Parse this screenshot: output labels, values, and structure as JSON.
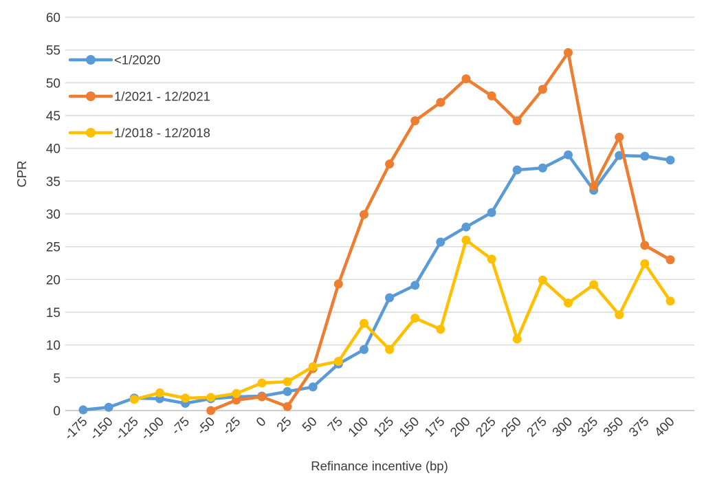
{
  "chart_data": {
    "type": "line",
    "title": "",
    "xlabel": "Refinance incentive (bp)",
    "ylabel": "CPR",
    "x": [
      -175,
      -150,
      -125,
      -100,
      -75,
      -50,
      -25,
      0,
      25,
      50,
      75,
      100,
      125,
      150,
      175,
      200,
      225,
      250,
      275,
      300,
      325,
      350,
      375,
      400
    ],
    "yticks": [
      0,
      5,
      10,
      15,
      20,
      25,
      30,
      35,
      40,
      45,
      50,
      55,
      60
    ],
    "ylim": [
      0,
      60
    ],
    "grid": true,
    "legend_position": "top-left-inside",
    "series": [
      {
        "name": "<1/2020",
        "color": "#5B9BD5",
        "values": [
          0.1,
          0.5,
          1.9,
          1.8,
          1.1,
          1.8,
          2.1,
          2.2,
          2.9,
          3.6,
          7.1,
          9.3,
          17.2,
          19.1,
          25.7,
          28.0,
          30.2,
          36.7,
          37.0,
          39.0,
          33.6,
          38.9,
          38.8,
          38.2
        ]
      },
      {
        "name": "1/2021 - 12/2021",
        "color": "#ED7D31",
        "values": [
          null,
          null,
          null,
          null,
          null,
          0.0,
          1.6,
          2.1,
          0.6,
          6.4,
          19.3,
          29.9,
          37.6,
          44.2,
          47.0,
          50.6,
          48.0,
          44.2,
          49.0,
          54.6,
          34.2,
          41.7,
          25.2,
          23.0
        ]
      },
      {
        "name": "1/2018 - 12/2018",
        "color": "#FFC000",
        "values": [
          null,
          null,
          1.7,
          2.7,
          1.9,
          2.0,
          2.6,
          4.2,
          4.4,
          6.7,
          7.5,
          13.3,
          9.3,
          14.1,
          12.4,
          26.0,
          23.1,
          10.9,
          19.9,
          16.4,
          19.2,
          14.6,
          22.4,
          16.7
        ]
      }
    ]
  },
  "colors": {
    "gridline": "#D9D9D9",
    "axis_line": "#BFBFBF",
    "text": "#3a3a3a",
    "background": "#ffffff"
  }
}
